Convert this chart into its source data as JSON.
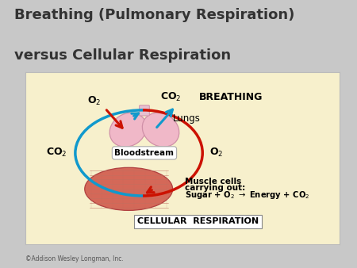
{
  "title_line1": "Breathing (Pulmonary Respiration)",
  "title_line2": "versus Cellular Respiration",
  "title_fontsize": 13,
  "title_color": "#333333",
  "title_fontweight": "bold",
  "bg_color": "#c8c8c8",
  "panel_bg": "#f7f0cc",
  "copyright": "©Addison Wesley Longman, Inc.",
  "lung_color": "#f0b8c8",
  "lung_edge": "#d090a8",
  "muscle_face": "#d46858",
  "muscle_edge": "#b04040",
  "arrow_red": "#cc1100",
  "arrow_blue": "#1199cc",
  "label_breathing": "BREATHING",
  "label_cellular": "CELLULAR  RESPIRATION",
  "label_lungs": "Lungs",
  "label_bloodstream": "Bloodstream",
  "label_o2_topleft": "O₂",
  "label_co2_topright": "CO₂",
  "label_co2_left": "CO₂",
  "label_o2_right": "O₂",
  "muscle_label_line1": "Muscle cells",
  "muscle_label_line2": "carrying out:",
  "muscle_label_line3": "Sugar + O₂ → Energy + CO₂"
}
